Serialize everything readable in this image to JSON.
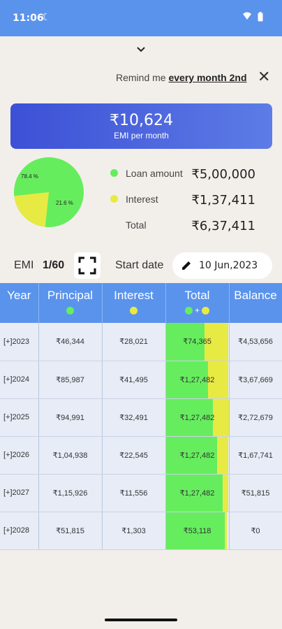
{
  "status": {
    "time": "11:06"
  },
  "reminder": {
    "prefix": "Remind me",
    "schedule": "every month 2nd"
  },
  "emi": {
    "amount": "₹10,624",
    "label": "EMI per month"
  },
  "pie": {
    "interest_pct_label": "21.6 %",
    "principal_pct_label": "78.4 %",
    "principal_fraction": 0.784
  },
  "legend": [
    {
      "label": "Loan amount",
      "value": "₹5,00,000",
      "color": "#66ed5e"
    },
    {
      "label": "Interest",
      "value": "₹1,37,411",
      "color": "#e8ea44"
    },
    {
      "label": "Total",
      "value": "₹6,37,411",
      "color": ""
    }
  ],
  "controls": {
    "emi_label": "EMI",
    "emi_count": "1/60",
    "start_label": "Start date",
    "start_date": "10 Jun,2023"
  },
  "table": {
    "headers": [
      "Year",
      "Principal",
      "Interest",
      "Total",
      "Balance"
    ],
    "rows": [
      {
        "year": "[+]2023",
        "principal": "₹46,344",
        "interest": "₹28,021",
        "total": "₹74,365",
        "balance": "₹4,53,656",
        "principal_share": 0.62,
        "fill": 1.0
      },
      {
        "year": "[+]2024",
        "principal": "₹85,987",
        "interest": "₹41,495",
        "total": "₹1,27,482",
        "balance": "₹3,67,669",
        "principal_share": 0.67,
        "fill": 1.0
      },
      {
        "year": "[+]2025",
        "principal": "₹94,991",
        "interest": "₹32,491",
        "total": "₹1,27,482",
        "balance": "₹2,72,679",
        "principal_share": 0.75,
        "fill": 1.0
      },
      {
        "year": "[+]2026",
        "principal": "₹1,04,938",
        "interest": "₹22,545",
        "total": "₹1,27,482",
        "balance": "₹1,67,741",
        "principal_share": 0.82,
        "fill": 1.0
      },
      {
        "year": "[+]2027",
        "principal": "₹1,15,926",
        "interest": "₹11,556",
        "total": "₹1,27,482",
        "balance": "₹51,815",
        "principal_share": 0.91,
        "fill": 1.0
      },
      {
        "year": "[+]2028",
        "principal": "₹51,815",
        "interest": "₹1,303",
        "total": "₹53,118",
        "balance": "₹0",
        "principal_share": 0.97,
        "fill": 0.97
      }
    ]
  }
}
